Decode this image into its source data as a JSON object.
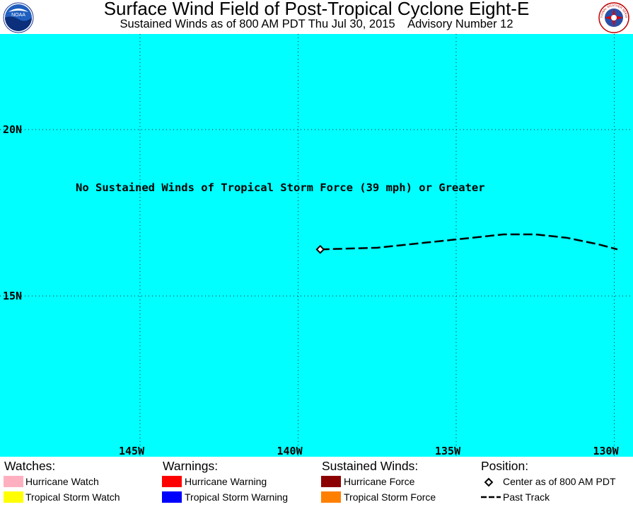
{
  "header": {
    "title": "Surface Wind Field of Post-Tropical Cyclone Eight-E",
    "subtitle": "Sustained Winds as of 800 AM PDT Thu Jul 30, 2015    Advisory Number 12",
    "left_logo_text": "NOAA",
    "right_logo_text": "NATIONAL WEATHER SERVICE"
  },
  "map": {
    "ocean_color": "#00ffff",
    "notice": "No Sustained Winds of Tropical Storm Force (39 mph) or Greater",
    "lat_labels": [
      "20N",
      "15N"
    ],
    "lon_labels": [
      "145W",
      "140W",
      "135W",
      "130W"
    ],
    "track": {
      "center": {
        "lon": -139.3,
        "lat": 16.4
      },
      "past_track": [
        {
          "lon": -139.3,
          "lat": 16.4
        },
        {
          "lon": -137.5,
          "lat": 16.45
        },
        {
          "lon": -136.0,
          "lat": 16.6
        },
        {
          "lon": -134.5,
          "lat": 16.75
        },
        {
          "lon": -133.5,
          "lat": 16.85
        },
        {
          "lon": -132.5,
          "lat": 16.85
        },
        {
          "lon": -131.5,
          "lat": 16.75
        },
        {
          "lon": -130.5,
          "lat": 16.55
        },
        {
          "lon": -129.9,
          "lat": 16.4
        }
      ]
    }
  },
  "legend": {
    "watches": {
      "heading": "Watches:",
      "items": [
        {
          "label": "Hurricane Watch",
          "color": "#ffb0c0"
        },
        {
          "label": "Tropical Storm Watch",
          "color": "#ffff00"
        }
      ]
    },
    "warnings": {
      "heading": "Warnings:",
      "items": [
        {
          "label": "Hurricane Warning",
          "color": "#ff0000"
        },
        {
          "label": "Tropical Storm Warning",
          "color": "#0000ff"
        }
      ]
    },
    "winds": {
      "heading": "Sustained Winds:",
      "items": [
        {
          "label": "Hurricane Force",
          "color": "#8b0000"
        },
        {
          "label": "Tropical Storm Force",
          "color": "#ff8000"
        }
      ]
    },
    "position": {
      "heading": "Position:",
      "items": [
        {
          "label": "Center as of 800 AM PDT",
          "icon": "diamond-icon"
        },
        {
          "label": "Past Track",
          "icon": "dashed-line-icon"
        }
      ]
    }
  }
}
